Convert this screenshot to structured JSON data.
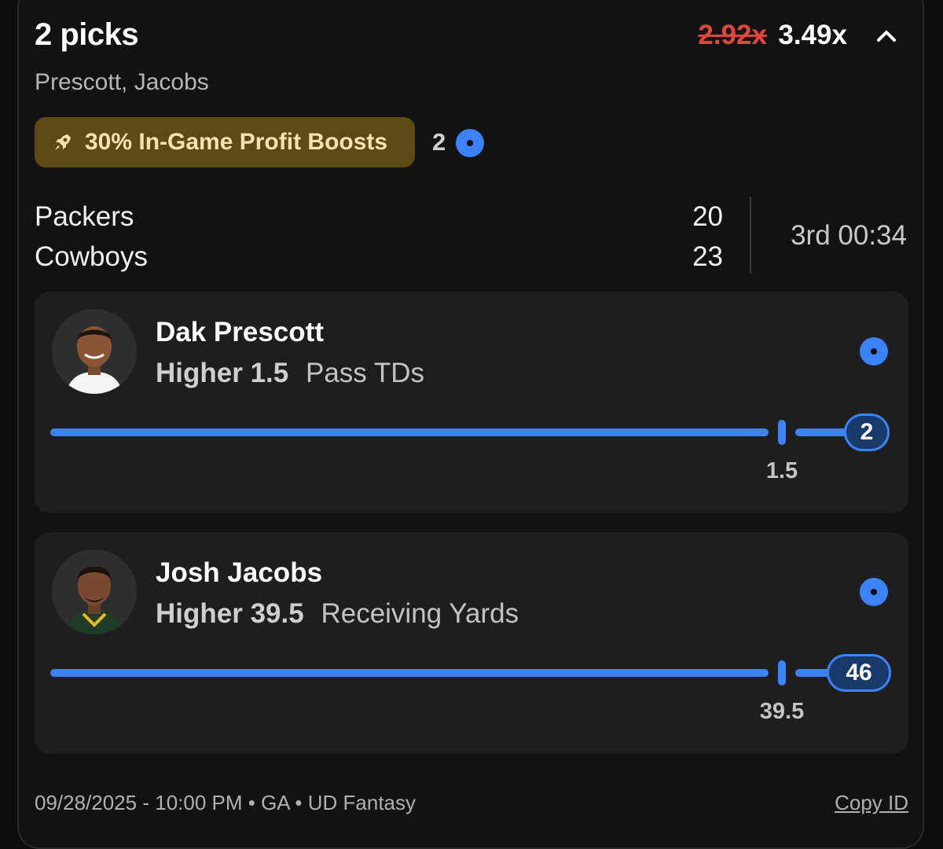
{
  "header": {
    "title": "2 picks",
    "players": "Prescott, Jacobs",
    "multiplier_old": "2.92x",
    "multiplier_new": "3.49x",
    "collapse_icon": "chevron-up-icon"
  },
  "boost": {
    "label": "30% In-Game Profit Boosts",
    "icon": "rocket-icon",
    "count": "2"
  },
  "game": {
    "home": {
      "team": "Packers",
      "score": "20"
    },
    "away": {
      "team": "Cowboys",
      "score": "23"
    },
    "clock": "3rd 00:34"
  },
  "picks": [
    {
      "name": "Dak Prescott",
      "direction": "Higher",
      "line": "1.5",
      "stat": "Pass TDs",
      "current": "2",
      "progress_line_label": "1.5"
    },
    {
      "name": "Josh Jacobs",
      "direction": "Higher",
      "line": "39.5",
      "stat": "Receiving Yards",
      "current": "46",
      "progress_line_label": "39.5"
    }
  ],
  "footer": {
    "meta": "09/28/2025 - 10:00 PM • GA • UD Fantasy",
    "copy_id": "Copy ID"
  },
  "colors": {
    "accent": "#3b82f6",
    "boost_bg": "#5b4a14",
    "strike_red": "#e0463c"
  }
}
